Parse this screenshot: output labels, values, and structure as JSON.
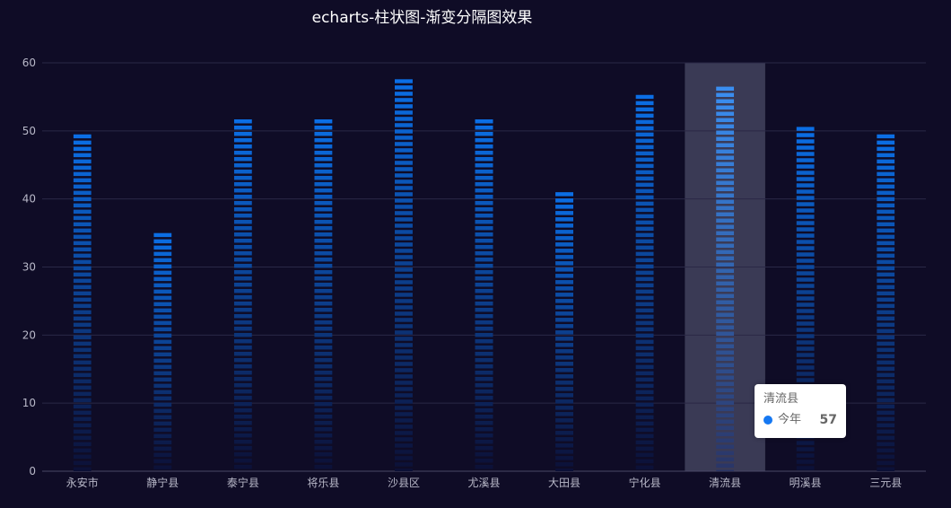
{
  "chart_data": {
    "type": "bar",
    "title": "echarts-柱状图-渐变分隔图效果",
    "categories": [
      "永安市",
      "静宁县",
      "泰宁县",
      "将乐县",
      "沙县区",
      "尤溪县",
      "大田县",
      "宁化县",
      "清流县",
      "明溪县",
      "三元县"
    ],
    "series": [
      {
        "name": "今年",
        "values": [
          49.5,
          35,
          51.7,
          51.7,
          57.6,
          51.7,
          41,
          55.3,
          56.5,
          50.6,
          49.5
        ]
      }
    ],
    "ylim": [
      0,
      60
    ],
    "yticks": [
      "0",
      "10",
      "20",
      "30",
      "40",
      "50",
      "60"
    ],
    "grid": true,
    "highlighted_category": "清流县",
    "colors": {
      "background": "#0f0c26",
      "bar_top": "#0b6fe6",
      "bar_bottom": "#0c1036",
      "highlight_band": "#3a3a55",
      "gridline": "#2a2846",
      "axis_text": "#b8b8c8",
      "series_dot": "#1578f2"
    }
  },
  "tooltip": {
    "title": "清流县",
    "series_name": "今年",
    "value": "57"
  }
}
